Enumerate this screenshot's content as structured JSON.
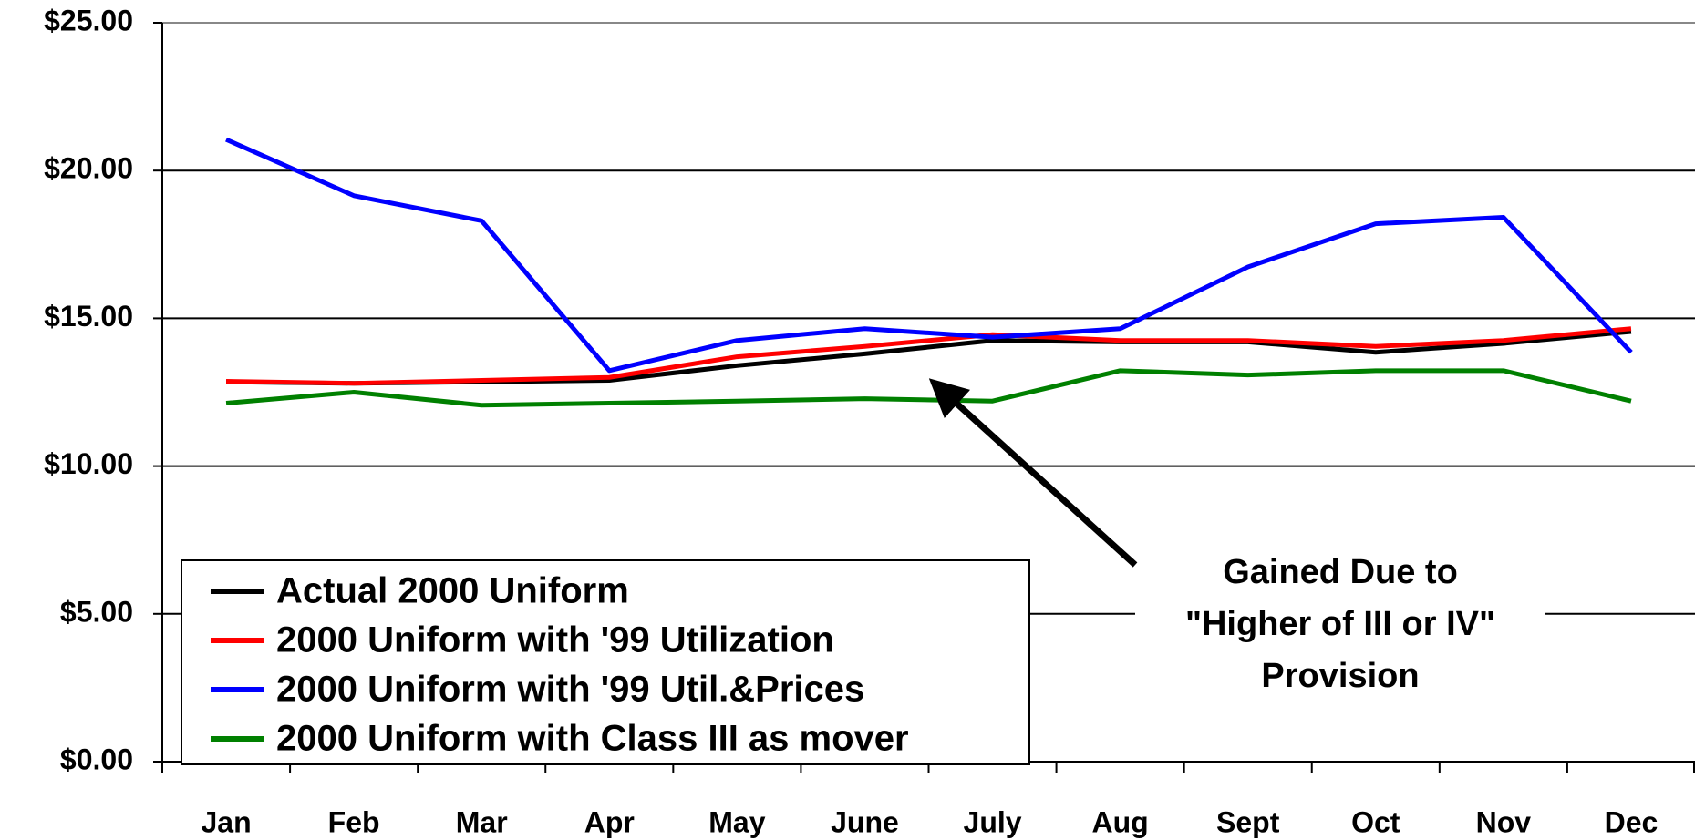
{
  "chart_data": {
    "type": "line",
    "categories": [
      "Jan",
      "Feb",
      "Mar",
      "Apr",
      "May",
      "June",
      "July",
      "Aug",
      "Sept",
      "Oct",
      "Nov",
      "Dec"
    ],
    "series": [
      {
        "name": "Actual 2000 Uniform",
        "color": "#000000",
        "values": [
          12.85,
          12.8,
          12.85,
          12.9,
          13.4,
          13.8,
          14.25,
          14.2,
          14.2,
          13.85,
          14.15,
          14.55
        ]
      },
      {
        "name": "2000 Uniform with '99 Utilization",
        "color": "#ff0000",
        "values": [
          12.87,
          12.8,
          12.9,
          13.0,
          13.7,
          14.05,
          14.45,
          14.25,
          14.25,
          14.05,
          14.25,
          14.65
        ]
      },
      {
        "name": "2000 Uniform with '99 Util.&Prices",
        "color": "#0000ff",
        "values": [
          21.05,
          19.15,
          18.3,
          13.23,
          14.25,
          14.65,
          14.36,
          14.65,
          16.74,
          18.2,
          18.42,
          13.85
        ]
      },
      {
        "name": "2000 Uniform with Class III as mover",
        "color": "#008000",
        "values": [
          12.13,
          12.5,
          12.06,
          12.13,
          12.2,
          12.28,
          12.2,
          13.23,
          13.08,
          13.23,
          13.23,
          12.2
        ]
      }
    ],
    "ylim": [
      0,
      25
    ],
    "yticks": [
      {
        "value": 0,
        "label": "$0.00"
      },
      {
        "value": 5,
        "label": "$5.00"
      },
      {
        "value": 10,
        "label": "$10.00"
      },
      {
        "value": 15,
        "label": "$15.00"
      },
      {
        "value": 20,
        "label": "$20.00"
      },
      {
        "value": 25,
        "label": "$25.00"
      }
    ],
    "grid": true,
    "legend": "lower left",
    "annotation": [
      "Gained Due to",
      "\"Higher of III or IV\"",
      "Provision"
    ]
  }
}
